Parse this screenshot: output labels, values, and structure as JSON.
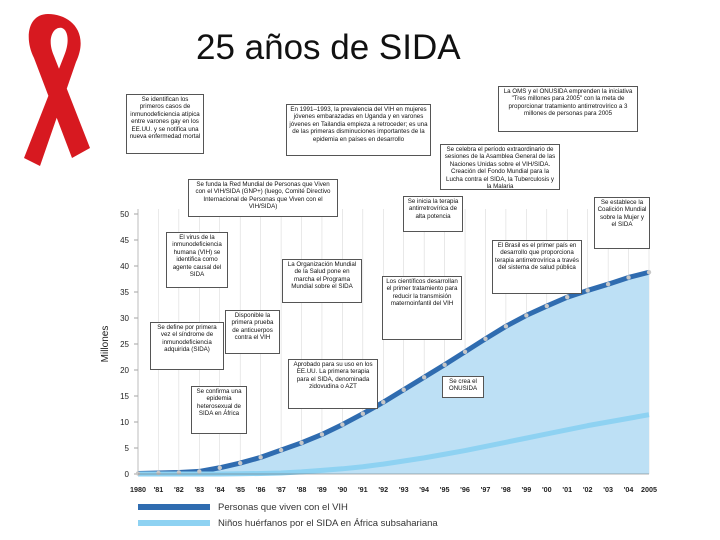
{
  "slide": {
    "title": "25 años de SIDA",
    "ribbon_color": "#d71920"
  },
  "chart_data": {
    "type": "area",
    "ylabel": "Millones",
    "ylim": [
      0,
      50
    ],
    "yticks": [
      0,
      5,
      10,
      15,
      20,
      25,
      30,
      35,
      40,
      45,
      50
    ],
    "categories": [
      "1980",
      "'81",
      "'82",
      "'83",
      "'84",
      "'85",
      "'86",
      "'87",
      "'88",
      "'89",
      "'90",
      "'91",
      "'92",
      "'93",
      "'94",
      "'95",
      "'96",
      "'97",
      "'98",
      "'99",
      "2000",
      "'01",
      "'02",
      "'03",
      "'04",
      "2005"
    ],
    "tick_labels": [
      "1980",
      "'81",
      "'82",
      "'83",
      "'84",
      "'85",
      "'86",
      "'87",
      "'88",
      "'89",
      "'90",
      "'91",
      "'92",
      "'93",
      "'94",
      "'95",
      "'96",
      "'97",
      "'98",
      "'99",
      "'00",
      "'01",
      "'02",
      "'03",
      "'04",
      "2005"
    ],
    "series": [
      {
        "name": "Personas que viven con el VIH",
        "color": "#2f6cb0",
        "fill": "#bde0f5",
        "values": [
          0.1,
          0.2,
          0.3,
          0.5,
          1.2,
          2.1,
          3.2,
          4.6,
          6.0,
          7.6,
          9.5,
          11.6,
          13.8,
          16.2,
          18.6,
          21.0,
          23.5,
          26.0,
          28.4,
          30.5,
          32.3,
          34.0,
          35.3,
          36.5,
          37.8,
          38.8
        ]
      },
      {
        "name": "Niños huérfanos por el SIDA en África subsahariana",
        "color": "#8ed2f2",
        "values": [
          0,
          0,
          0,
          0,
          0,
          0.05,
          0.1,
          0.2,
          0.4,
          0.7,
          1.0,
          1.4,
          1.9,
          2.5,
          3.1,
          3.8,
          4.5,
          5.3,
          6.1,
          6.9,
          7.7,
          8.5,
          9.3,
          10.0,
          10.7,
          11.4
        ]
      }
    ],
    "legend": [
      "Personas que viven con el VIH",
      "Niños huérfanos por el SIDA en África subsahariana"
    ],
    "annotations": [
      "Se identifican los primeros casos de inmunodeficiencia atípica entre varones gay en los EE.UU. y se notifica una nueva enfermedad mortal",
      "En 1991–1993, la prevalencia del VIH en mujeres jóvenes embarazadas en Uganda y en varones jóvenes en Tailandia empieza a retroceder; es una de las primeras disminuciones importantes de la epidemia en países en desarrollo",
      "La OMS y el ONUSIDA emprenden la iniciativa \"Tres millones para 2005\" con la meta de proporcionar tratamiento antirretrovírico a 3 millones de personas para 2005",
      "Se celebra el período extraordinario de sesiones de la Asamblea General de las Naciones Unidas sobre el VIH/SIDA. Creación del Fondo Mundial para la Lucha contra el SIDA, la Tuberculosis y la Malaria",
      "Se funda la Red Mundial de Personas que Viven con el VIH/SIDA (GNP+) (luego, Comité Directivo Internacional de Personas que Viven con el VIH/SIDA)",
      "Se inicia la terapia antirretrovírica de alta potencia",
      "Se establece la Coalición Mundial sobre la Mujer y el SIDA",
      "El virus de la inmunodeficiencia humana (VIH) se identifica como agente causal del SIDA",
      "La Organización Mundial de la Salud pone en marcha el Programa Mundial sobre el SIDA",
      "Los científicos desarrollan el primer tratamiento para reducir la transmisión maternoinfantil del VIH",
      "El Brasil es el primer país en desarrollo que proporciona terapia antirretrovírica a través del sistema de salud pública",
      "Disponible la primera prueba de anticuerpos contra el VIH",
      "Se define por primera vez el síndrome de inmunodeficiencia adquirida (SIDA)",
      "Aprobado para su uso en los EE.UU. La primera terapia para el SIDA, denominada zidovudina o AZT",
      "Se crea el ONUSIDA",
      "Se confirma una epidemia heterosexual de SIDA en África"
    ]
  }
}
